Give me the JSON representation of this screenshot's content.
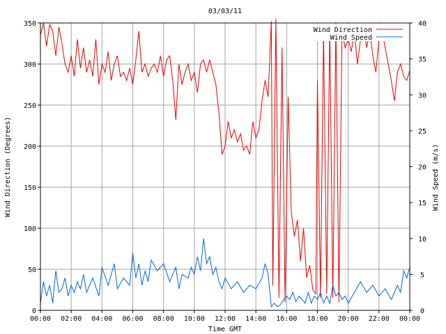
{
  "chart_data": {
    "type": "line",
    "title": "03/03/11",
    "xlabel": "Time GMT",
    "ylabel_left": "Wind Direction (Degrees)",
    "ylabel_right": "Wind Speed (m/s)",
    "x_ticks": [
      "00:00",
      "02:00",
      "04:00",
      "06:00",
      "08:00",
      "10:00",
      "12:00",
      "14:00",
      "16:00",
      "18:00",
      "20:00",
      "22:00",
      "00:00"
    ],
    "xlim_hours": [
      0,
      24
    ],
    "ylim_left": [
      0,
      350
    ],
    "ylim_right": [
      0,
      40
    ],
    "y_ticks_left": [
      0,
      50,
      100,
      150,
      200,
      250,
      300,
      350
    ],
    "y_ticks_right": [
      0,
      5,
      10,
      15,
      20,
      25,
      30,
      35,
      40
    ],
    "grid": true,
    "legend": "top-right",
    "series": [
      {
        "name": "Wind Direction",
        "axis": "left",
        "color": "#e00000",
        "points": [
          [
            0.0,
            335
          ],
          [
            0.2,
            350
          ],
          [
            0.4,
            322
          ],
          [
            0.6,
            348
          ],
          [
            0.8,
            340
          ],
          [
            1.0,
            310
          ],
          [
            1.2,
            345
          ],
          [
            1.4,
            325
          ],
          [
            1.6,
            300
          ],
          [
            1.8,
            290
          ],
          [
            2.0,
            310
          ],
          [
            2.2,
            285
          ],
          [
            2.4,
            330
          ],
          [
            2.6,
            295
          ],
          [
            2.8,
            320
          ],
          [
            3.0,
            290
          ],
          [
            3.2,
            305
          ],
          [
            3.4,
            285
          ],
          [
            3.6,
            330
          ],
          [
            3.8,
            275
          ],
          [
            4.0,
            300
          ],
          [
            4.2,
            290
          ],
          [
            4.4,
            315
          ],
          [
            4.6,
            280
          ],
          [
            4.8,
            300
          ],
          [
            5.0,
            310
          ],
          [
            5.2,
            285
          ],
          [
            5.4,
            290
          ],
          [
            5.6,
            280
          ],
          [
            5.8,
            295
          ],
          [
            6.0,
            275
          ],
          [
            6.2,
            305
          ],
          [
            6.4,
            340
          ],
          [
            6.6,
            290
          ],
          [
            6.8,
            300
          ],
          [
            7.0,
            285
          ],
          [
            7.2,
            295
          ],
          [
            7.4,
            300
          ],
          [
            7.6,
            290
          ],
          [
            7.8,
            310
          ],
          [
            8.0,
            285
          ],
          [
            8.2,
            305
          ],
          [
            8.4,
            310
          ],
          [
            8.6,
            280
          ],
          [
            8.8,
            232
          ],
          [
            9.0,
            300
          ],
          [
            9.2,
            275
          ],
          [
            9.4,
            290
          ],
          [
            9.6,
            300
          ],
          [
            9.8,
            280
          ],
          [
            10.0,
            290
          ],
          [
            10.2,
            265
          ],
          [
            10.4,
            300
          ],
          [
            10.6,
            305
          ],
          [
            10.8,
            290
          ],
          [
            11.0,
            305
          ],
          [
            11.2,
            290
          ],
          [
            11.4,
            275
          ],
          [
            11.6,
            240
          ],
          [
            11.8,
            190
          ],
          [
            12.0,
            200
          ],
          [
            12.2,
            230
          ],
          [
            12.4,
            210
          ],
          [
            12.6,
            220
          ],
          [
            12.8,
            205
          ],
          [
            13.0,
            215
          ],
          [
            13.2,
            195
          ],
          [
            13.4,
            200
          ],
          [
            13.6,
            190
          ],
          [
            13.8,
            230
          ],
          [
            14.0,
            210
          ],
          [
            14.2,
            220
          ],
          [
            14.4,
            255
          ],
          [
            14.6,
            280
          ],
          [
            14.8,
            260
          ],
          [
            15.0,
            352
          ],
          [
            15.1,
            30
          ],
          [
            15.3,
            355
          ],
          [
            15.5,
            15
          ],
          [
            15.7,
            320
          ],
          [
            15.9,
            10
          ],
          [
            16.1,
            260
          ],
          [
            16.3,
            120
          ],
          [
            16.5,
            90
          ],
          [
            16.7,
            110
          ],
          [
            16.9,
            60
          ],
          [
            17.1,
            100
          ],
          [
            17.3,
            40
          ],
          [
            17.5,
            55
          ],
          [
            17.7,
            25
          ],
          [
            17.9,
            20
          ],
          [
            18.0,
            280
          ],
          [
            18.2,
            15
          ],
          [
            18.4,
            340
          ],
          [
            18.6,
            20
          ],
          [
            18.8,
            345
          ],
          [
            19.0,
            15
          ],
          [
            19.2,
            350
          ],
          [
            19.4,
            10
          ],
          [
            19.6,
            340
          ],
          [
            19.8,
            320
          ],
          [
            20.0,
            330
          ],
          [
            20.2,
            315
          ],
          [
            20.4,
            340
          ],
          [
            20.6,
            300
          ],
          [
            20.8,
            330
          ],
          [
            21.0,
            345
          ],
          [
            21.2,
            320
          ],
          [
            21.4,
            340
          ],
          [
            21.6,
            310
          ],
          [
            21.8,
            290
          ],
          [
            22.0,
            330
          ],
          [
            22.2,
            340
          ],
          [
            22.4,
            320
          ],
          [
            22.6,
            300
          ],
          [
            22.8,
            280
          ],
          [
            23.0,
            255
          ],
          [
            23.2,
            290
          ],
          [
            23.4,
            300
          ],
          [
            23.6,
            285
          ],
          [
            23.8,
            280
          ],
          [
            24.0,
            292
          ]
        ]
      },
      {
        "name": "Wind Speed",
        "axis": "right",
        "color": "#0066cc",
        "points": [
          [
            0.0,
            1.0
          ],
          [
            0.2,
            4.0
          ],
          [
            0.4,
            2.0
          ],
          [
            0.6,
            3.5
          ],
          [
            0.8,
            1.0
          ],
          [
            1.0,
            5.5
          ],
          [
            1.2,
            2.5
          ],
          [
            1.4,
            3.0
          ],
          [
            1.6,
            4.5
          ],
          [
            1.8,
            2.0
          ],
          [
            2.0,
            3.5
          ],
          [
            2.2,
            2.5
          ],
          [
            2.4,
            4.0
          ],
          [
            2.6,
            3.0
          ],
          [
            2.8,
            5.0
          ],
          [
            3.0,
            2.5
          ],
          [
            3.4,
            4.5
          ],
          [
            3.8,
            2.0
          ],
          [
            4.0,
            6.0
          ],
          [
            4.4,
            3.5
          ],
          [
            4.8,
            6.5
          ],
          [
            5.0,
            3.0
          ],
          [
            5.4,
            4.5
          ],
          [
            5.8,
            3.5
          ],
          [
            6.0,
            8.0
          ],
          [
            6.2,
            4.5
          ],
          [
            6.4,
            6.5
          ],
          [
            6.6,
            3.5
          ],
          [
            6.8,
            5.5
          ],
          [
            7.0,
            4.0
          ],
          [
            7.2,
            7.0
          ],
          [
            7.6,
            5.5
          ],
          [
            8.0,
            6.5
          ],
          [
            8.4,
            4.0
          ],
          [
            8.8,
            6.0
          ],
          [
            9.0,
            3.0
          ],
          [
            9.2,
            5.0
          ],
          [
            9.6,
            4.5
          ],
          [
            9.8,
            6.0
          ],
          [
            10.0,
            5.0
          ],
          [
            10.2,
            7.5
          ],
          [
            10.4,
            5.5
          ],
          [
            10.6,
            10.0
          ],
          [
            10.8,
            6.5
          ],
          [
            11.0,
            7.5
          ],
          [
            11.2,
            5.0
          ],
          [
            11.4,
            6.0
          ],
          [
            11.6,
            4.0
          ],
          [
            11.8,
            3.0
          ],
          [
            12.0,
            4.5
          ],
          [
            12.4,
            3.0
          ],
          [
            12.8,
            4.0
          ],
          [
            13.2,
            2.5
          ],
          [
            13.6,
            3.5
          ],
          [
            14.0,
            3.0
          ],
          [
            14.4,
            4.5
          ],
          [
            14.6,
            6.5
          ],
          [
            14.8,
            5.0
          ],
          [
            15.0,
            0.5
          ],
          [
            15.2,
            1.0
          ],
          [
            15.4,
            0.5
          ],
          [
            15.6,
            0.8
          ],
          [
            15.8,
            1.5
          ],
          [
            16.0,
            2.0
          ],
          [
            16.2,
            1.5
          ],
          [
            16.4,
            2.5
          ],
          [
            16.6,
            1.2
          ],
          [
            16.8,
            2.0
          ],
          [
            17.0,
            1.5
          ],
          [
            17.2,
            1.0
          ],
          [
            17.4,
            2.5
          ],
          [
            17.6,
            1.0
          ],
          [
            17.8,
            2.0
          ],
          [
            18.0,
            1.5
          ],
          [
            18.2,
            2.5
          ],
          [
            18.4,
            1.0
          ],
          [
            18.6,
            2.0
          ],
          [
            18.8,
            1.0
          ],
          [
            19.0,
            3.5
          ],
          [
            19.2,
            2.0
          ],
          [
            19.4,
            2.5
          ],
          [
            19.6,
            1.5
          ],
          [
            19.8,
            2.0
          ],
          [
            20.0,
            1.0
          ],
          [
            20.4,
            2.5
          ],
          [
            20.8,
            4.0
          ],
          [
            21.2,
            2.5
          ],
          [
            21.6,
            3.5
          ],
          [
            22.0,
            2.0
          ],
          [
            22.4,
            3.0
          ],
          [
            22.8,
            1.5
          ],
          [
            23.2,
            3.5
          ],
          [
            23.4,
            2.5
          ],
          [
            23.6,
            5.5
          ],
          [
            23.8,
            4.5
          ],
          [
            24.0,
            6.0
          ]
        ]
      }
    ]
  }
}
